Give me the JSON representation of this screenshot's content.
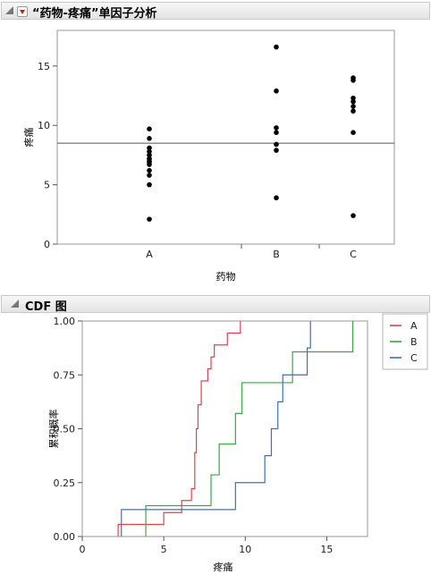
{
  "oneway": {
    "title": "“药物-疼痛”单因子分析"
  },
  "cdf": {
    "title": "CDF 图"
  },
  "chart_data": [
    {
      "type": "scatter",
      "xlabel": "药物",
      "ylabel": "疼痛",
      "categories": [
        "A",
        "B",
        "C"
      ],
      "ylim": [
        0,
        18
      ],
      "yticks": [
        0,
        5,
        10,
        15
      ],
      "grand_mean": 8.5,
      "points": {
        "A": [
          2.1,
          5.0,
          5.8,
          6.2,
          6.7,
          6.9,
          7.0,
          7.2,
          7.5,
          7.8,
          8.1,
          8.9,
          9.7
        ],
        "B": [
          3.9,
          7.9,
          8.4,
          9.4,
          9.8,
          12.9,
          16.6
        ],
        "C": [
          2.4,
          9.4,
          11.2,
          11.6,
          12.0,
          12.3,
          13.8,
          14.0
        ]
      }
    },
    {
      "type": "line",
      "xlabel": "疼痛",
      "ylabel": "累积概率",
      "xlim": [
        0,
        17.5
      ],
      "ylim": [
        0,
        1
      ],
      "xticks": [
        0,
        5,
        10,
        15
      ],
      "yticks": [
        "0.00",
        "0.25",
        "0.50",
        "0.75",
        "1.00"
      ],
      "legend_position": "top-right",
      "series": [
        {
          "name": "A",
          "color": "#e0434f",
          "x": [
            2.2,
            5.0,
            6.1,
            6.7,
            6.9,
            7.0,
            7.1,
            7.3,
            7.7,
            7.9,
            8.1,
            8.9,
            9.7
          ],
          "y": [
            0.056,
            0.111,
            0.167,
            0.222,
            0.389,
            0.5,
            0.611,
            0.722,
            0.778,
            0.833,
            0.889,
            0.944,
            1.0
          ]
        },
        {
          "name": "B",
          "color": "#39a846",
          "x": [
            3.9,
            7.9,
            8.4,
            9.4,
            9.8,
            12.9,
            16.6
          ],
          "y": [
            0.143,
            0.286,
            0.429,
            0.571,
            0.714,
            0.857,
            1.0
          ]
        },
        {
          "name": "C",
          "color": "#3f6fc4",
          "x": [
            2.4,
            9.4,
            11.2,
            11.6,
            12.0,
            12.3,
            13.8,
            14.0
          ],
          "y": [
            0.125,
            0.25,
            0.375,
            0.5,
            0.625,
            0.75,
            0.875,
            1.0
          ]
        }
      ]
    }
  ]
}
